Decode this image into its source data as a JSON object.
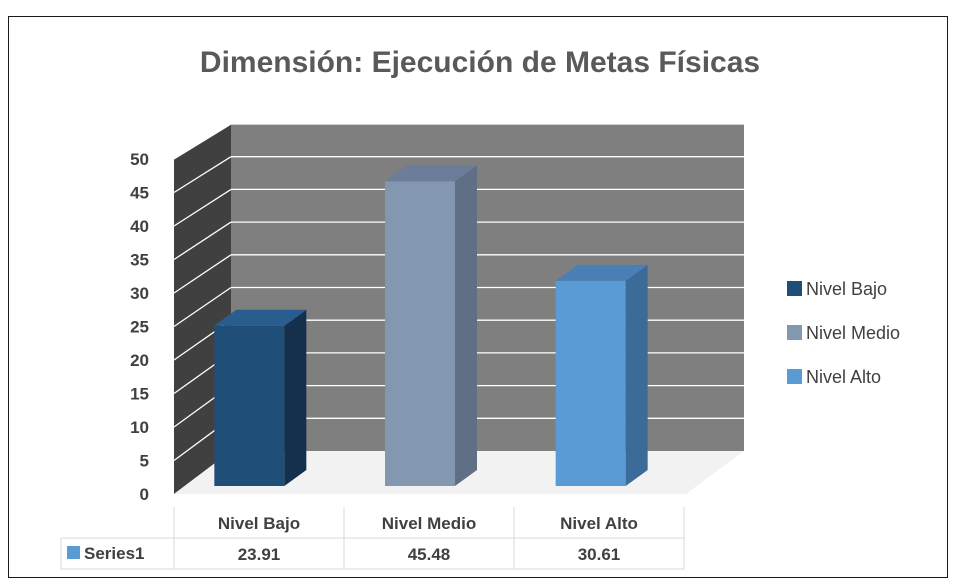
{
  "chart_data": {
    "type": "bar",
    "title": "Dimensión: Ejecución de Metas Físicas",
    "categories": [
      "Nivel Bajo",
      "Nivel Medio",
      "Nivel Alto"
    ],
    "series": [
      {
        "name": "Series1",
        "values": [
          23.91,
          45.48,
          30.61
        ],
        "value_labels": [
          "23.91",
          "45.48",
          "30.61"
        ]
      }
    ],
    "ylim": [
      0,
      50
    ],
    "yticks": [
      "0",
      "5",
      "10",
      "15",
      "20",
      "25",
      "30",
      "35",
      "40",
      "45",
      "50"
    ],
    "grid": true,
    "style": "3d",
    "legend_position": "right",
    "legend": [
      "Nivel Bajo",
      "Nivel Medio",
      "Nivel Alto"
    ],
    "colors": {
      "bars": [
        "#1f4e79",
        "#8497b0",
        "#5b9bd5"
      ],
      "bar_sides": [
        "#15304d",
        "#5f6f85",
        "#3b6b99"
      ],
      "bar_tops": [
        "#2a5d8f",
        "#6c7d99",
        "#4a7fb5"
      ],
      "back_wall": "#7f7f7f",
      "side_wall": "#404040",
      "floor": "#f2f2f2",
      "grid": "#ffffff",
      "table_series_key": "#5b9bd5"
    }
  }
}
